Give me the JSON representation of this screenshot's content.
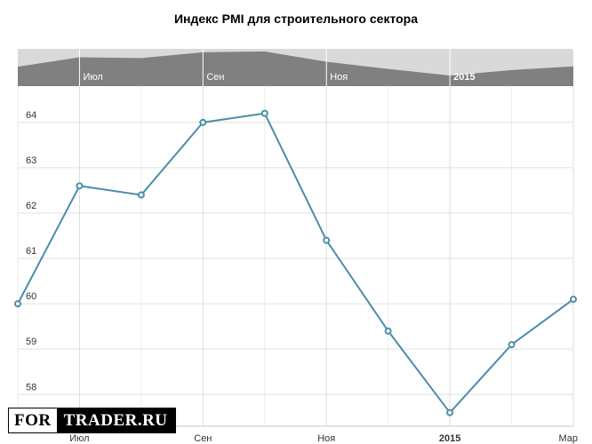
{
  "chart_data": {
    "type": "line",
    "title": "Индекс PMI для строительного сектора",
    "x": [
      "2014-06",
      "2014-07",
      "2014-08",
      "2014-09",
      "2014-10",
      "2014-11",
      "2014-12",
      "2015-01",
      "2015-02",
      "2015-03"
    ],
    "series": [
      {
        "values": [
          60.0,
          62.6,
          62.4,
          64.0,
          64.2,
          61.4,
          59.4,
          57.6,
          59.1,
          60.1
        ]
      }
    ],
    "x_tick_labels": [
      {
        "x": "2014-07",
        "label": "Июл",
        "bold": false
      },
      {
        "x": "2014-09",
        "label": "Сен",
        "bold": false
      },
      {
        "x": "2014-11",
        "label": "Ноя",
        "bold": false
      },
      {
        "x": "2015-01",
        "label": "2015",
        "bold": true
      },
      {
        "x": "2015-03",
        "label": "Мар",
        "bold": false
      }
    ],
    "y_tick_labels": [
      "58",
      "59",
      "60",
      "61",
      "62",
      "63",
      "64"
    ],
    "ylim": [
      57.3,
      64.8
    ],
    "grid": true,
    "legend": "none",
    "navigator": {
      "shown": true,
      "tick_labels": [
        {
          "x": "2014-07",
          "label": "Июл",
          "bold": false
        },
        {
          "x": "2014-09",
          "label": "Сен",
          "bold": false
        },
        {
          "x": "2014-11",
          "label": "Ноя",
          "bold": false
        },
        {
          "x": "2015-01",
          "label": "2015",
          "bold": true
        }
      ]
    },
    "colors": {
      "line": "#4a8ea8",
      "navigator_fill": "#808080",
      "navigator_bg": "#d9d9d9",
      "grid": "#e0e0e0"
    }
  },
  "watermark": {
    "left": "FOR",
    "right": "TRADER.RU"
  }
}
